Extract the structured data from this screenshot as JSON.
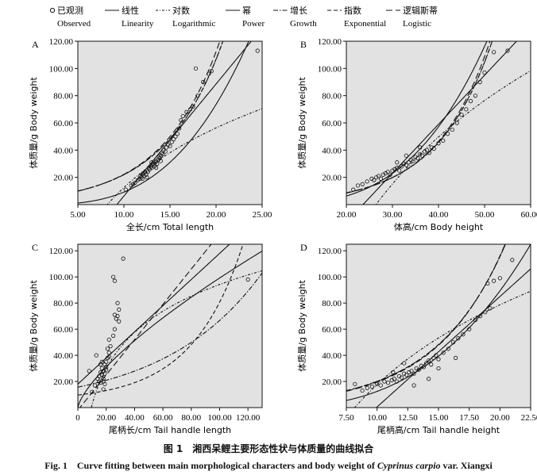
{
  "legend": [
    {
      "zh": "已观测",
      "en": "Observed",
      "style": "circle"
    },
    {
      "zh": "线性",
      "en": "Linearity",
      "style": "solid"
    },
    {
      "zh": "对数",
      "en": "Logarithmic",
      "style": "dashdot-fine"
    },
    {
      "zh": "幂",
      "en": "Power",
      "style": "solid"
    },
    {
      "zh": "增长",
      "en": "Growth",
      "style": "dashdot"
    },
    {
      "zh": "指数",
      "en": "Exponential",
      "style": "dashed"
    },
    {
      "zh": "逻辑斯蒂",
      "en": "Logistic",
      "style": "dashed-long"
    }
  ],
  "caption": {
    "zh": "图 1　湘西呆鲤主要形态性状与体质量的曲线拟合",
    "en_prefix": "Fig. 1　Curve fitting between main morphological characters and body weight of ",
    "en_species": "Cyprinus carpio",
    "en_suffix": " var. Xiangxi"
  },
  "colors": {
    "plot_bg": "#e2e2e2",
    "line": "#111111",
    "point": "#111111"
  },
  "chart_data": [
    {
      "panel": "A",
      "type": "scatter",
      "xlabel": "全长/cm Total length",
      "ylabel": "体质量/g Body weight",
      "xlim": [
        5,
        25
      ],
      "ylim": [
        0,
        120
      ],
      "xticks": [
        "5.00",
        "10.00",
        "15.00",
        "20.00",
        "25.00"
      ],
      "yticks": [
        "20.00",
        "40.00",
        "60.00",
        "80.00",
        "100.00",
        "120.00"
      ],
      "points": [
        [
          10.2,
          11
        ],
        [
          10.8,
          14
        ],
        [
          11.2,
          16
        ],
        [
          11.5,
          18
        ],
        [
          11.7,
          19
        ],
        [
          11.8,
          21
        ],
        [
          11.9,
          20
        ],
        [
          12.0,
          22
        ],
        [
          12.1,
          23
        ],
        [
          12.2,
          21
        ],
        [
          12.3,
          24
        ],
        [
          12.4,
          22
        ],
        [
          12.5,
          25
        ],
        [
          12.6,
          24
        ],
        [
          12.7,
          27
        ],
        [
          12.8,
          26
        ],
        [
          12.9,
          28
        ],
        [
          13.0,
          27
        ],
        [
          13.1,
          29
        ],
        [
          13.2,
          30
        ],
        [
          13.3,
          28
        ],
        [
          13.4,
          31
        ],
        [
          13.5,
          32
        ],
        [
          13.6,
          30
        ],
        [
          13.7,
          33
        ],
        [
          13.8,
          35
        ],
        [
          13.9,
          34
        ],
        [
          14.0,
          36
        ],
        [
          14.1,
          38
        ],
        [
          14.2,
          37
        ],
        [
          14.3,
          40
        ],
        [
          14.5,
          39
        ],
        [
          14.6,
          42
        ],
        [
          14.8,
          44
        ],
        [
          15.0,
          43
        ],
        [
          15.2,
          46
        ],
        [
          15.4,
          48
        ],
        [
          15.6,
          50
        ],
        [
          15.8,
          52
        ],
        [
          16.0,
          56
        ],
        [
          16.2,
          62
        ],
        [
          16.4,
          65
        ],
        [
          16.8,
          68
        ],
        [
          17.2,
          70
        ],
        [
          17.5,
          72
        ],
        [
          18.0,
          80
        ],
        [
          18.6,
          90
        ],
        [
          19.2,
          96
        ],
        [
          17.8,
          100
        ],
        [
          19.5,
          98
        ],
        [
          24.5,
          113
        ],
        [
          11.0,
          15
        ],
        [
          12.0,
          19
        ],
        [
          13.0,
          31
        ],
        [
          14.0,
          32
        ],
        [
          12.5,
          20
        ],
        [
          13.5,
          27
        ]
      ]
    },
    {
      "panel": "B",
      "type": "scatter",
      "xlabel": "体高/cm Body height",
      "ylabel": "体质量/g Body weight",
      "xlim": [
        20,
        60
      ],
      "ylim": [
        0,
        120
      ],
      "xticks": [
        "20.00",
        "30.00",
        "40.00",
        "50.00",
        "60.00"
      ],
      "yticks": [
        "20.00",
        "40.00",
        "60.00",
        "80.00",
        "100.00",
        "120.00"
      ],
      "points": [
        [
          21.5,
          11
        ],
        [
          22.5,
          14
        ],
        [
          23.5,
          15
        ],
        [
          24.5,
          17
        ],
        [
          25.5,
          19
        ],
        [
          26.0,
          18
        ],
        [
          26.5,
          20
        ],
        [
          27.0,
          21
        ],
        [
          27.5,
          19
        ],
        [
          28.0,
          22
        ],
        [
          28.5,
          23
        ],
        [
          29.0,
          24
        ],
        [
          29.5,
          22
        ],
        [
          30.0,
          25
        ],
        [
          30.5,
          26
        ],
        [
          31.0,
          27
        ],
        [
          31.5,
          25
        ],
        [
          32.0,
          28
        ],
        [
          32.5,
          30
        ],
        [
          33.0,
          29
        ],
        [
          33.5,
          31
        ],
        [
          34.0,
          33
        ],
        [
          34.5,
          32
        ],
        [
          35.0,
          35
        ],
        [
          35.5,
          34
        ],
        [
          36.0,
          37
        ],
        [
          36.5,
          36
        ],
        [
          37.0,
          39
        ],
        [
          38.0,
          38
        ],
        [
          38.5,
          42
        ],
        [
          39.0,
          41
        ],
        [
          40.0,
          45
        ],
        [
          41.0,
          47
        ],
        [
          42.0,
          52
        ],
        [
          43.0,
          55
        ],
        [
          44.0,
          60
        ],
        [
          45.0,
          66
        ],
        [
          46.0,
          70
        ],
        [
          47.0,
          76
        ],
        [
          48.0,
          80
        ],
        [
          49.0,
          90
        ],
        [
          50.0,
          97
        ],
        [
          52.0,
          112
        ],
        [
          55.0,
          113
        ],
        [
          36.0,
          42
        ],
        [
          37.5,
          40
        ],
        [
          33.0,
          36
        ],
        [
          31.0,
          31
        ]
      ]
    },
    {
      "panel": "C",
      "type": "scatter",
      "xlabel": "尾柄长/cm Tail handle length",
      "ylabel": "体质量/g Body weight",
      "xlim": [
        0,
        130
      ],
      "ylim": [
        0,
        125
      ],
      "xticks": [
        "0",
        "20.00",
        "40.00",
        "60.00",
        "80.00",
        "100.00",
        "120.00"
      ],
      "yticks": [
        "20.00",
        "40.00",
        "60.00",
        "80.00",
        "100.00",
        "120.00"
      ],
      "points": [
        [
          10,
          12
        ],
        [
          12,
          17
        ],
        [
          14,
          22
        ],
        [
          15,
          20
        ],
        [
          15,
          24
        ],
        [
          16,
          19
        ],
        [
          16,
          27
        ],
        [
          17,
          25
        ],
        [
          17,
          30
        ],
        [
          18,
          22
        ],
        [
          18,
          28
        ],
        [
          19,
          26
        ],
        [
          19,
          33
        ],
        [
          20,
          29
        ],
        [
          20,
          35
        ],
        [
          21,
          38
        ],
        [
          22,
          42
        ],
        [
          23,
          47
        ],
        [
          25,
          55
        ],
        [
          26,
          60
        ],
        [
          26,
          71
        ],
        [
          27,
          68
        ],
        [
          28,
          70
        ],
        [
          29,
          66
        ],
        [
          25,
          100
        ],
        [
          26,
          97
        ],
        [
          28,
          80
        ],
        [
          32,
          114
        ],
        [
          29,
          75
        ],
        [
          22,
          52
        ],
        [
          21,
          45
        ],
        [
          19,
          18
        ],
        [
          18,
          14
        ],
        [
          17,
          35
        ],
        [
          20,
          31
        ],
        [
          22,
          39
        ],
        [
          8,
          28
        ],
        [
          13,
          40
        ],
        [
          18,
          20
        ],
        [
          16,
          33
        ],
        [
          120,
          98
        ]
      ]
    },
    {
      "panel": "D",
      "type": "scatter",
      "xlabel": "尾柄高/cm Tail handle height",
      "ylabel": "体质量/g Body weight",
      "xlim": [
        7.5,
        22.5
      ],
      "ylim": [
        0,
        125
      ],
      "xticks": [
        "7.50",
        "10.00",
        "12.50",
        "15.00",
        "17.50",
        "20.00",
        "22.50"
      ],
      "yticks": [
        "20.00",
        "40.00",
        "60.00",
        "80.00",
        "100.00",
        "120.00"
      ],
      "points": [
        [
          8.2,
          18
        ],
        [
          8.8,
          13
        ],
        [
          9.2,
          15
        ],
        [
          9.6,
          16
        ],
        [
          10.0,
          18
        ],
        [
          10.3,
          17
        ],
        [
          10.6,
          20
        ],
        [
          10.9,
          19
        ],
        [
          11.2,
          21
        ],
        [
          11.4,
          22
        ],
        [
          11.6,
          20
        ],
        [
          11.8,
          24
        ],
        [
          12.0,
          23
        ],
        [
          12.2,
          26
        ],
        [
          12.4,
          25
        ],
        [
          12.6,
          27
        ],
        [
          12.8,
          28
        ],
        [
          13.0,
          26
        ],
        [
          13.2,
          30
        ],
        [
          13.4,
          29
        ],
        [
          13.6,
          32
        ],
        [
          13.8,
          31
        ],
        [
          14.0,
          34
        ],
        [
          14.2,
          36
        ],
        [
          14.4,
          33
        ],
        [
          14.6,
          38
        ],
        [
          14.8,
          40
        ],
        [
          15.0,
          37
        ],
        [
          15.4,
          42
        ],
        [
          15.8,
          45
        ],
        [
          16.2,
          50
        ],
        [
          16.6,
          53
        ],
        [
          17.0,
          56
        ],
        [
          17.5,
          60
        ],
        [
          18.0,
          67
        ],
        [
          18.4,
          70
        ],
        [
          18.8,
          73
        ],
        [
          19.2,
          76
        ],
        [
          19.0,
          95
        ],
        [
          19.5,
          97
        ],
        [
          20.0,
          99
        ],
        [
          21.0,
          113
        ],
        [
          14.2,
          22
        ],
        [
          13.0,
          17
        ],
        [
          12.2,
          34
        ],
        [
          16.4,
          38
        ],
        [
          11.3,
          27
        ],
        [
          15.0,
          30
        ]
      ]
    }
  ]
}
